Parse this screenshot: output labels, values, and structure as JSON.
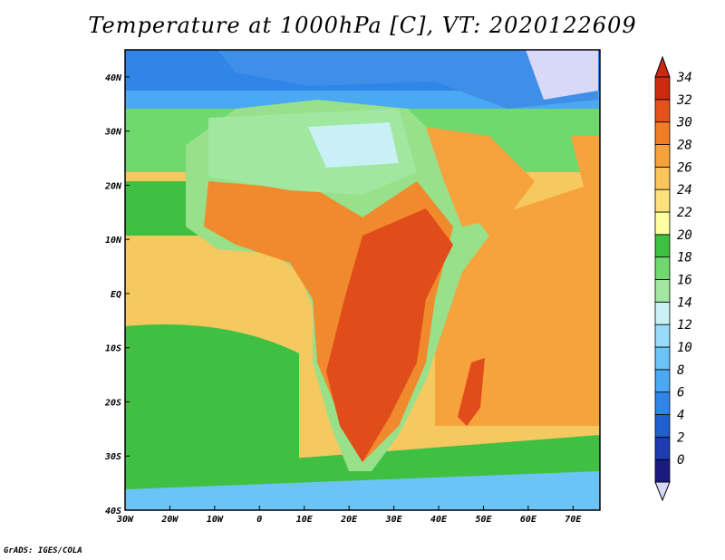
{
  "title": "Temperature at 1000hPa [C], VT: 2020122609",
  "credit": "GrADS: IGES/COLA",
  "map": {
    "lon_range": [
      -30,
      76
    ],
    "lat_range": [
      -40,
      45
    ],
    "lon_ticks": [
      "30W",
      "20W",
      "10W",
      "0",
      "10E",
      "20E",
      "30E",
      "40E",
      "50E",
      "60E",
      "70E"
    ],
    "lat_ticks": [
      "40S",
      "30S",
      "20S",
      "10S",
      "EQ",
      "10N",
      "20N",
      "30N",
      "40N"
    ]
  },
  "colorbar": {
    "labels": [
      "0",
      "2",
      "4",
      "6",
      "8",
      "10",
      "12",
      "14",
      "16",
      "18",
      "20",
      "22",
      "24",
      "26",
      "28",
      "30",
      "32",
      "34"
    ],
    "colors": [
      "#1a1a80",
      "#1c3cb0",
      "#2060d0",
      "#2f86e8",
      "#4ba8f2",
      "#6cc3f6",
      "#98daf7",
      "#c8f0f5",
      "#a0e8a0",
      "#6fd86e",
      "#3fc043",
      "#fffea0",
      "#fde17a",
      "#fbc55b",
      "#f7a33d",
      "#f27c25",
      "#e4521b",
      "#cc2a0f"
    ]
  },
  "palette": {
    "ocean_cool": "#2fc45a",
    "ocean_warm": "#f2a23b",
    "ocean_mild": "#f5c860",
    "land_hot": "#e14d1a",
    "land_warm": "#f08a2c",
    "land_mild": "#98e08a",
    "cold_north": "#3f8fe8",
    "very_cold": "#d8d8f8"
  }
}
